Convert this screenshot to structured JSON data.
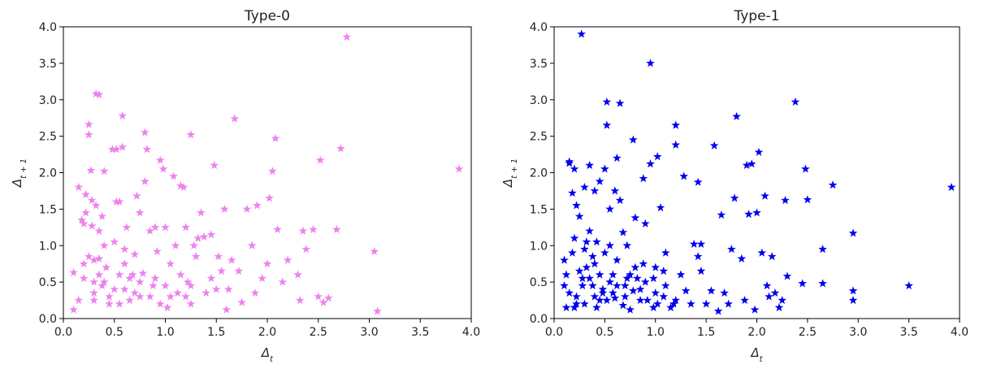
{
  "chart_data": [
    {
      "type": "scatter",
      "title": "Type-0",
      "xlabel": "Δ",
      "xlabel_sub": "t",
      "ylabel": "Δ",
      "ylabel_sub": "t + 1",
      "xlim": [
        0.0,
        4.0
      ],
      "ylim": [
        0.0,
        4.0
      ],
      "xticks": [
        "0.0",
        "0.5",
        "1.0",
        "1.5",
        "2.0",
        "2.5",
        "3.0",
        "3.5",
        "4.0"
      ],
      "yticks": [
        "0.0",
        "0.5",
        "1.0",
        "1.5",
        "2.0",
        "2.5",
        "3.0",
        "3.5",
        "4.0"
      ],
      "marker": "star",
      "color": "#ee82ee",
      "grid": false,
      "points": [
        [
          0.1,
          0.63
        ],
        [
          0.1,
          0.12
        ],
        [
          0.15,
          1.8
        ],
        [
          0.2,
          1.3
        ],
        [
          0.2,
          0.55
        ],
        [
          0.22,
          1.7
        ],
        [
          0.22,
          1.45
        ],
        [
          0.25,
          2.66
        ],
        [
          0.25,
          2.52
        ],
        [
          0.27,
          2.03
        ],
        [
          0.28,
          1.62
        ],
        [
          0.28,
          1.27
        ],
        [
          0.3,
          0.8
        ],
        [
          0.3,
          0.5
        ],
        [
          0.3,
          0.25
        ],
        [
          0.32,
          3.08
        ],
        [
          0.35,
          3.07
        ],
        [
          0.32,
          1.55
        ],
        [
          0.35,
          1.2
        ],
        [
          0.35,
          0.82
        ],
        [
          0.38,
          1.4
        ],
        [
          0.38,
          0.45
        ],
        [
          0.4,
          2.02
        ],
        [
          0.4,
          1.0
        ],
        [
          0.42,
          0.7
        ],
        [
          0.45,
          0.3
        ],
        [
          0.48,
          2.32
        ],
        [
          0.5,
          1.05
        ],
        [
          0.52,
          2.32
        ],
        [
          0.52,
          1.6
        ],
        [
          0.55,
          1.6
        ],
        [
          0.55,
          0.6
        ],
        [
          0.58,
          2.78
        ],
        [
          0.58,
          2.35
        ],
        [
          0.6,
          0.95
        ],
        [
          0.6,
          0.4
        ],
        [
          0.62,
          1.25
        ],
        [
          0.65,
          0.25
        ],
        [
          0.68,
          0.6
        ],
        [
          0.7,
          0.88
        ],
        [
          0.72,
          1.68
        ],
        [
          0.75,
          1.45
        ],
        [
          0.75,
          0.3
        ],
        [
          0.78,
          0.62
        ],
        [
          0.8,
          2.55
        ],
        [
          0.8,
          1.88
        ],
        [
          0.82,
          2.32
        ],
        [
          0.85,
          1.2
        ],
        [
          0.88,
          0.45
        ],
        [
          0.9,
          1.25
        ],
        [
          0.92,
          0.92
        ],
        [
          0.95,
          2.17
        ],
        [
          0.98,
          2.05
        ],
        [
          1.0,
          1.25
        ],
        [
          1.0,
          0.45
        ],
        [
          1.02,
          0.15
        ],
        [
          1.05,
          0.75
        ],
        [
          1.08,
          1.95
        ],
        [
          1.1,
          1.0
        ],
        [
          1.12,
          0.35
        ],
        [
          1.15,
          1.82
        ],
        [
          1.18,
          1.8
        ],
        [
          1.2,
          1.25
        ],
        [
          1.22,
          0.5
        ],
        [
          1.25,
          2.52
        ],
        [
          1.25,
          0.2
        ],
        [
          1.28,
          1.0
        ],
        [
          1.32,
          1.1
        ],
        [
          1.35,
          1.45
        ],
        [
          1.38,
          1.12
        ],
        [
          1.4,
          0.35
        ],
        [
          1.45,
          1.15
        ],
        [
          1.48,
          2.1
        ],
        [
          1.5,
          0.4
        ],
        [
          1.52,
          0.85
        ],
        [
          1.58,
          1.5
        ],
        [
          1.6,
          0.12
        ],
        [
          1.62,
          0.4
        ],
        [
          1.65,
          0.8
        ],
        [
          1.68,
          2.74
        ],
        [
          1.72,
          0.65
        ],
        [
          1.75,
          0.22
        ],
        [
          1.8,
          1.5
        ],
        [
          1.85,
          1.0
        ],
        [
          1.88,
          0.35
        ],
        [
          1.9,
          1.55
        ],
        [
          1.95,
          0.55
        ],
        [
          2.0,
          0.75
        ],
        [
          2.02,
          1.65
        ],
        [
          2.05,
          2.02
        ],
        [
          2.08,
          2.47
        ],
        [
          2.1,
          1.22
        ],
        [
          2.15,
          0.5
        ],
        [
          2.2,
          0.8
        ],
        [
          2.3,
          0.6
        ],
        [
          2.32,
          0.25
        ],
        [
          2.35,
          1.2
        ],
        [
          2.38,
          0.95
        ],
        [
          2.45,
          1.22
        ],
        [
          2.5,
          0.3
        ],
        [
          2.52,
          2.17
        ],
        [
          2.55,
          0.22
        ],
        [
          2.6,
          0.28
        ],
        [
          2.68,
          1.22
        ],
        [
          2.72,
          2.33
        ],
        [
          2.78,
          3.86
        ],
        [
          3.05,
          0.92
        ],
        [
          3.08,
          0.1
        ],
        [
          3.88,
          2.05
        ],
        [
          0.18,
          1.35
        ],
        [
          0.25,
          0.85
        ],
        [
          0.4,
          0.5
        ],
        [
          0.45,
          0.2
        ],
        [
          0.7,
          0.35
        ],
        [
          0.85,
          0.3
        ],
        [
          0.95,
          0.2
        ],
        [
          1.15,
          0.6
        ],
        [
          1.2,
          0.3
        ],
        [
          0.15,
          0.25
        ],
        [
          0.3,
          0.35
        ],
        [
          0.55,
          0.2
        ],
        [
          0.65,
          0.55
        ],
        [
          1.3,
          0.85
        ],
        [
          0.2,
          0.75
        ],
        [
          0.35,
          0.6
        ],
        [
          0.5,
          0.4
        ],
        [
          0.6,
          0.75
        ],
        [
          0.75,
          0.5
        ],
        [
          0.9,
          0.55
        ],
        [
          1.05,
          0.3
        ],
        [
          1.25,
          0.45
        ],
        [
          1.45,
          0.55
        ],
        [
          1.55,
          0.65
        ]
      ]
    },
    {
      "type": "scatter",
      "title": "Type-1",
      "xlabel": "Δ",
      "xlabel_sub": "t",
      "ylabel": "Δ",
      "ylabel_sub": "t + 1",
      "xlim": [
        0.0,
        4.0
      ],
      "ylim": [
        0.0,
        4.0
      ],
      "xticks": [
        "0.0",
        "0.5",
        "1.0",
        "1.5",
        "2.0",
        "2.5",
        "3.0",
        "3.5",
        "4.0"
      ],
      "yticks": [
        "0.0",
        "0.5",
        "1.0",
        "1.5",
        "2.0",
        "2.5",
        "3.0",
        "3.5",
        "4.0"
      ],
      "marker": "star",
      "color": "#0000ee",
      "grid": false,
      "points": [
        [
          0.1,
          0.8
        ],
        [
          0.1,
          0.45
        ],
        [
          0.12,
          0.15
        ],
        [
          0.15,
          2.15
        ],
        [
          0.15,
          2.13
        ],
        [
          0.18,
          1.72
        ],
        [
          0.2,
          2.05
        ],
        [
          0.2,
          1.1
        ],
        [
          0.22,
          0.3
        ],
        [
          0.22,
          1.55
        ],
        [
          0.25,
          1.4
        ],
        [
          0.27,
          3.9
        ],
        [
          0.28,
          0.55
        ],
        [
          0.3,
          1.8
        ],
        [
          0.3,
          0.95
        ],
        [
          0.32,
          0.7
        ],
        [
          0.35,
          2.1
        ],
        [
          0.35,
          1.2
        ],
        [
          0.38,
          0.45
        ],
        [
          0.4,
          1.75
        ],
        [
          0.4,
          0.3
        ],
        [
          0.42,
          1.05
        ],
        [
          0.45,
          1.88
        ],
        [
          0.45,
          0.6
        ],
        [
          0.48,
          0.4
        ],
        [
          0.5,
          2.05
        ],
        [
          0.52,
          2.97
        ],
        [
          0.52,
          2.65
        ],
        [
          0.55,
          1.5
        ],
        [
          0.55,
          0.5
        ],
        [
          0.58,
          0.35
        ],
        [
          0.6,
          1.75
        ],
        [
          0.62,
          2.2
        ],
        [
          0.62,
          0.8
        ],
        [
          0.65,
          2.95
        ],
        [
          0.65,
          1.62
        ],
        [
          0.68,
          1.18
        ],
        [
          0.7,
          0.45
        ],
        [
          0.72,
          0.55
        ],
        [
          0.75,
          0.12
        ],
        [
          0.78,
          2.45
        ],
        [
          0.8,
          1.38
        ],
        [
          0.8,
          0.7
        ],
        [
          0.85,
          0.4
        ],
        [
          0.88,
          1.92
        ],
        [
          0.9,
          1.3
        ],
        [
          0.95,
          3.5
        ],
        [
          0.95,
          2.12
        ],
        [
          0.98,
          0.15
        ],
        [
          1.0,
          0.7
        ],
        [
          1.02,
          2.22
        ],
        [
          1.05,
          1.52
        ],
        [
          1.08,
          0.3
        ],
        [
          1.1,
          0.9
        ],
        [
          1.15,
          0.15
        ],
        [
          1.2,
          2.65
        ],
        [
          1.2,
          2.38
        ],
        [
          1.25,
          0.6
        ],
        [
          1.28,
          1.95
        ],
        [
          1.3,
          0.38
        ],
        [
          1.35,
          0.2
        ],
        [
          1.38,
          1.02
        ],
        [
          1.42,
          1.87
        ],
        [
          1.42,
          0.85
        ],
        [
          1.45,
          1.02
        ],
        [
          1.45,
          0.65
        ],
        [
          1.5,
          0.2
        ],
        [
          1.55,
          0.38
        ],
        [
          1.58,
          2.37
        ],
        [
          1.62,
          0.1
        ],
        [
          1.65,
          1.42
        ],
        [
          1.68,
          0.35
        ],
        [
          1.72,
          0.2
        ],
        [
          1.75,
          0.95
        ],
        [
          1.78,
          1.65
        ],
        [
          1.8,
          2.77
        ],
        [
          1.85,
          0.82
        ],
        [
          1.88,
          0.25
        ],
        [
          1.9,
          2.1
        ],
        [
          1.92,
          1.43
        ],
        [
          1.95,
          2.12
        ],
        [
          1.98,
          0.12
        ],
        [
          2.0,
          1.45
        ],
        [
          2.02,
          2.28
        ],
        [
          2.05,
          0.9
        ],
        [
          2.08,
          1.68
        ],
        [
          2.1,
          0.45
        ],
        [
          2.12,
          0.3
        ],
        [
          2.15,
          0.85
        ],
        [
          2.18,
          0.35
        ],
        [
          2.22,
          0.15
        ],
        [
          2.25,
          0.25
        ],
        [
          2.28,
          1.62
        ],
        [
          2.3,
          0.58
        ],
        [
          2.38,
          2.97
        ],
        [
          2.45,
          0.48
        ],
        [
          2.48,
          2.05
        ],
        [
          2.5,
          1.63
        ],
        [
          2.65,
          0.95
        ],
        [
          2.65,
          0.48
        ],
        [
          2.75,
          1.83
        ],
        [
          2.95,
          1.17
        ],
        [
          2.95,
          0.38
        ],
        [
          2.95,
          0.25
        ],
        [
          3.5,
          0.45
        ],
        [
          3.92,
          1.8
        ],
        [
          0.15,
          0.35
        ],
        [
          0.2,
          0.15
        ],
        [
          0.25,
          0.65
        ],
        [
          0.3,
          0.2
        ],
        [
          0.35,
          0.55
        ],
        [
          0.4,
          0.75
        ],
        [
          0.45,
          0.25
        ],
        [
          0.5,
          0.9
        ],
        [
          0.55,
          1.0
        ],
        [
          0.6,
          0.28
        ],
        [
          0.7,
          0.3
        ],
        [
          0.75,
          0.6
        ],
        [
          0.85,
          0.25
        ],
        [
          0.9,
          0.5
        ],
        [
          1.0,
          0.35
        ],
        [
          1.1,
          0.45
        ],
        [
          1.2,
          0.25
        ],
        [
          0.18,
          0.9
        ],
        [
          0.28,
          0.45
        ],
        [
          0.38,
          0.85
        ],
        [
          0.48,
          0.35
        ],
        [
          0.58,
          0.6
        ],
        [
          0.68,
          0.18
        ],
        [
          0.78,
          0.38
        ],
        [
          0.88,
          0.75
        ],
        [
          0.98,
          0.55
        ],
        [
          1.08,
          0.65
        ],
        [
          1.18,
          0.2
        ],
        [
          0.12,
          0.6
        ],
        [
          0.22,
          0.2
        ],
        [
          0.32,
          1.05
        ],
        [
          0.42,
          0.15
        ],
        [
          0.52,
          0.25
        ],
        [
          0.62,
          0.45
        ],
        [
          0.72,
          1.0
        ],
        [
          0.82,
          0.55
        ],
        [
          0.92,
          0.25
        ],
        [
          1.02,
          0.2
        ]
      ]
    }
  ]
}
